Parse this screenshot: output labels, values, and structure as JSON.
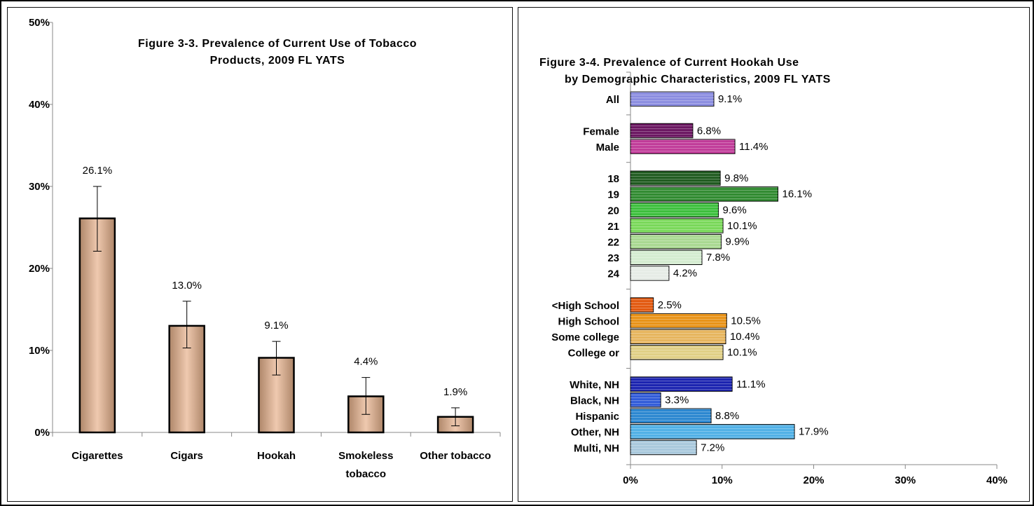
{
  "chart_data": [
    {
      "type": "bar",
      "title_lines": [
        "Figure 3-3. Prevalence of Current Use of Tobacco",
        "Products, 2009 FL YATS"
      ],
      "xlabel": "",
      "ylabel": "",
      "ylim": [
        0,
        50
      ],
      "yticks": [
        "0%",
        "10%",
        "20%",
        "30%",
        "40%",
        "50%"
      ],
      "grid": false,
      "categories": [
        {
          "name": "Cigarettes",
          "lines": [
            "Cigarettes"
          ]
        },
        {
          "name": "Cigars",
          "lines": [
            "Cigars"
          ]
        },
        {
          "name": "Hookah",
          "lines": [
            "Hookah"
          ]
        },
        {
          "name": "Smokeless tobacco",
          "lines": [
            "Smokeless",
            "tobacco"
          ]
        },
        {
          "name": "Other tobacco",
          "lines": [
            "Other tobacco"
          ]
        }
      ],
      "values": [
        26.1,
        13.0,
        9.1,
        4.4,
        1.9
      ],
      "labels": [
        "26.1%",
        "13.0%",
        "9.1%",
        "4.4%",
        "1.9%"
      ],
      "error_low": [
        22.1,
        10.3,
        7.0,
        2.2,
        0.8
      ],
      "error_high": [
        30.0,
        16.0,
        11.1,
        6.7,
        3.0
      ],
      "bar_color": "#e8b28c"
    },
    {
      "type": "bar",
      "orientation": "horizontal",
      "title_lines": [
        "Figure 3-4.   Prevalence of Current Hookah Use",
        "by Demographic Characteristics, 2009 FL YATS"
      ],
      "xlabel": "",
      "ylabel": "",
      "xlim": [
        0,
        40
      ],
      "xticks": [
        "0%",
        "10%",
        "20%",
        "30%",
        "40%"
      ],
      "grid": false,
      "groups": [
        {
          "items": [
            {
              "label": "All",
              "value": 9.1,
              "text": "9.1%",
              "color": "#8a8ce0"
            }
          ]
        },
        {
          "items": [
            {
              "label": "Female",
              "value": 6.8,
              "text": "6.8%",
              "color": "#6a1560"
            },
            {
              "label": "Male",
              "value": 11.4,
              "text": "11.4%",
              "color": "#c03a98"
            }
          ]
        },
        {
          "items": [
            {
              "label": "18",
              "value": 9.8,
              "text": "9.8%",
              "color": "#1f5a1f"
            },
            {
              "label": "19",
              "value": 16.1,
              "text": "16.1%",
              "color": "#2f8a2f"
            },
            {
              "label": "20",
              "value": 9.6,
              "text": "9.6%",
              "color": "#3cbf3c"
            },
            {
              "label": "21",
              "value": 10.1,
              "text": "10.1%",
              "color": "#78d858"
            },
            {
              "label": "22",
              "value": 9.9,
              "text": "9.9%",
              "color": "#a8d890"
            },
            {
              "label": "23",
              "value": 7.8,
              "text": "7.8%",
              "color": "#d4ecd0"
            },
            {
              "label": "24",
              "value": 4.2,
              "text": "4.2%",
              "color": "#e6ece6"
            }
          ]
        },
        {
          "items": [
            {
              "label": "<High School",
              "value": 2.5,
              "text": "2.5%",
              "color": "#e2580e"
            },
            {
              "label": "High School",
              "value": 10.5,
              "text": "10.5%",
              "color": "#e89216"
            },
            {
              "label": "Some college",
              "value": 10.4,
              "text": "10.4%",
              "color": "#e6b45c"
            },
            {
              "label": "College or",
              "value": 10.1,
              "text": "10.1%",
              "color": "#e0cf84"
            }
          ]
        },
        {
          "items": [
            {
              "label": "White, NH",
              "value": 11.1,
              "text": "11.1%",
              "color": "#1a22b0"
            },
            {
              "label": "Black, NH",
              "value": 3.3,
              "text": "3.3%",
              "color": "#2f5ad8"
            },
            {
              "label": "Hispanic",
              "value": 8.8,
              "text": "8.8%",
              "color": "#2a86d0"
            },
            {
              "label": "Other, NH",
              "value": 17.9,
              "text": "17.9%",
              "color": "#4fb0e6"
            },
            {
              "label": "Multi, NH",
              "value": 7.2,
              "text": "7.2%",
              "color": "#a8c8dc"
            }
          ]
        }
      ]
    }
  ]
}
